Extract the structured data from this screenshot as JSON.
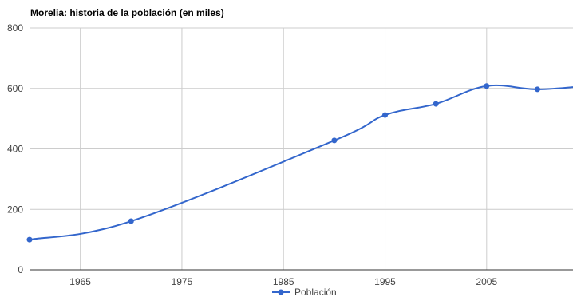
{
  "chart_data": {
    "type": "line",
    "title": "Morelia: historia de la población (en miles)",
    "xlabel": "",
    "ylabel": "",
    "x_ticks": [
      1965,
      1975,
      1985,
      1995,
      2005
    ],
    "y_ticks": [
      0,
      200,
      400,
      600,
      800
    ],
    "xlim": [
      1960,
      2013.5
    ],
    "ylim": [
      0,
      800
    ],
    "grid": true,
    "legend_position": "bottom",
    "series": [
      {
        "name": "Población",
        "color": "#3366cc",
        "x": [
          1960,
          1970,
          1990,
          1995,
          2000,
          2005,
          2010,
          2015
        ],
        "y": [
          100,
          161,
          428,
          512,
          549,
          608,
          597,
          609
        ]
      }
    ]
  }
}
